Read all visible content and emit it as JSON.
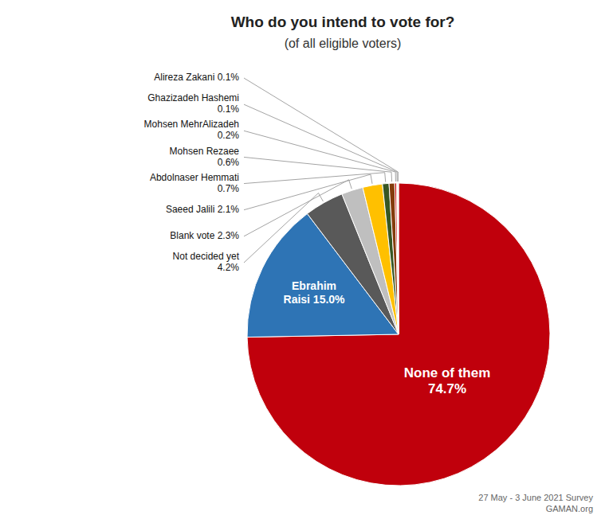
{
  "chart_data": {
    "type": "pie",
    "title": "Who do you intend to vote for?",
    "subtitle": "(of all eligible voters)",
    "categories": [
      "None of them\n74.7%",
      "Ebrahim\nRaisi 15.0%",
      "Not decided yet\n4.2%",
      "Blank vote 2.3%",
      "Saeed Jalili 2.1%",
      "Abdolnaser Hemmati\n0.7%",
      "Mohsen Rezaee\n0.6%",
      "Mohsen MehrAlizadeh\n0.2%",
      "Ghazizadeh Hashemi\n0.1%",
      "Alireza Zakani 0.1%"
    ],
    "values": [
      74.7,
      15.0,
      4.2,
      2.3,
      2.1,
      0.7,
      0.6,
      0.2,
      0.1,
      0.1
    ],
    "colors": [
      "#C0000C",
      "#2E74B5",
      "#595959",
      "#BFBFBF",
      "#FFC000",
      "#375623",
      "#843C0C",
      "#C00000",
      "#FFD966",
      "#D9D9D9"
    ],
    "annotations": [
      "27 May - 3 June 2021 Survey\nGAMAN.org"
    ]
  }
}
